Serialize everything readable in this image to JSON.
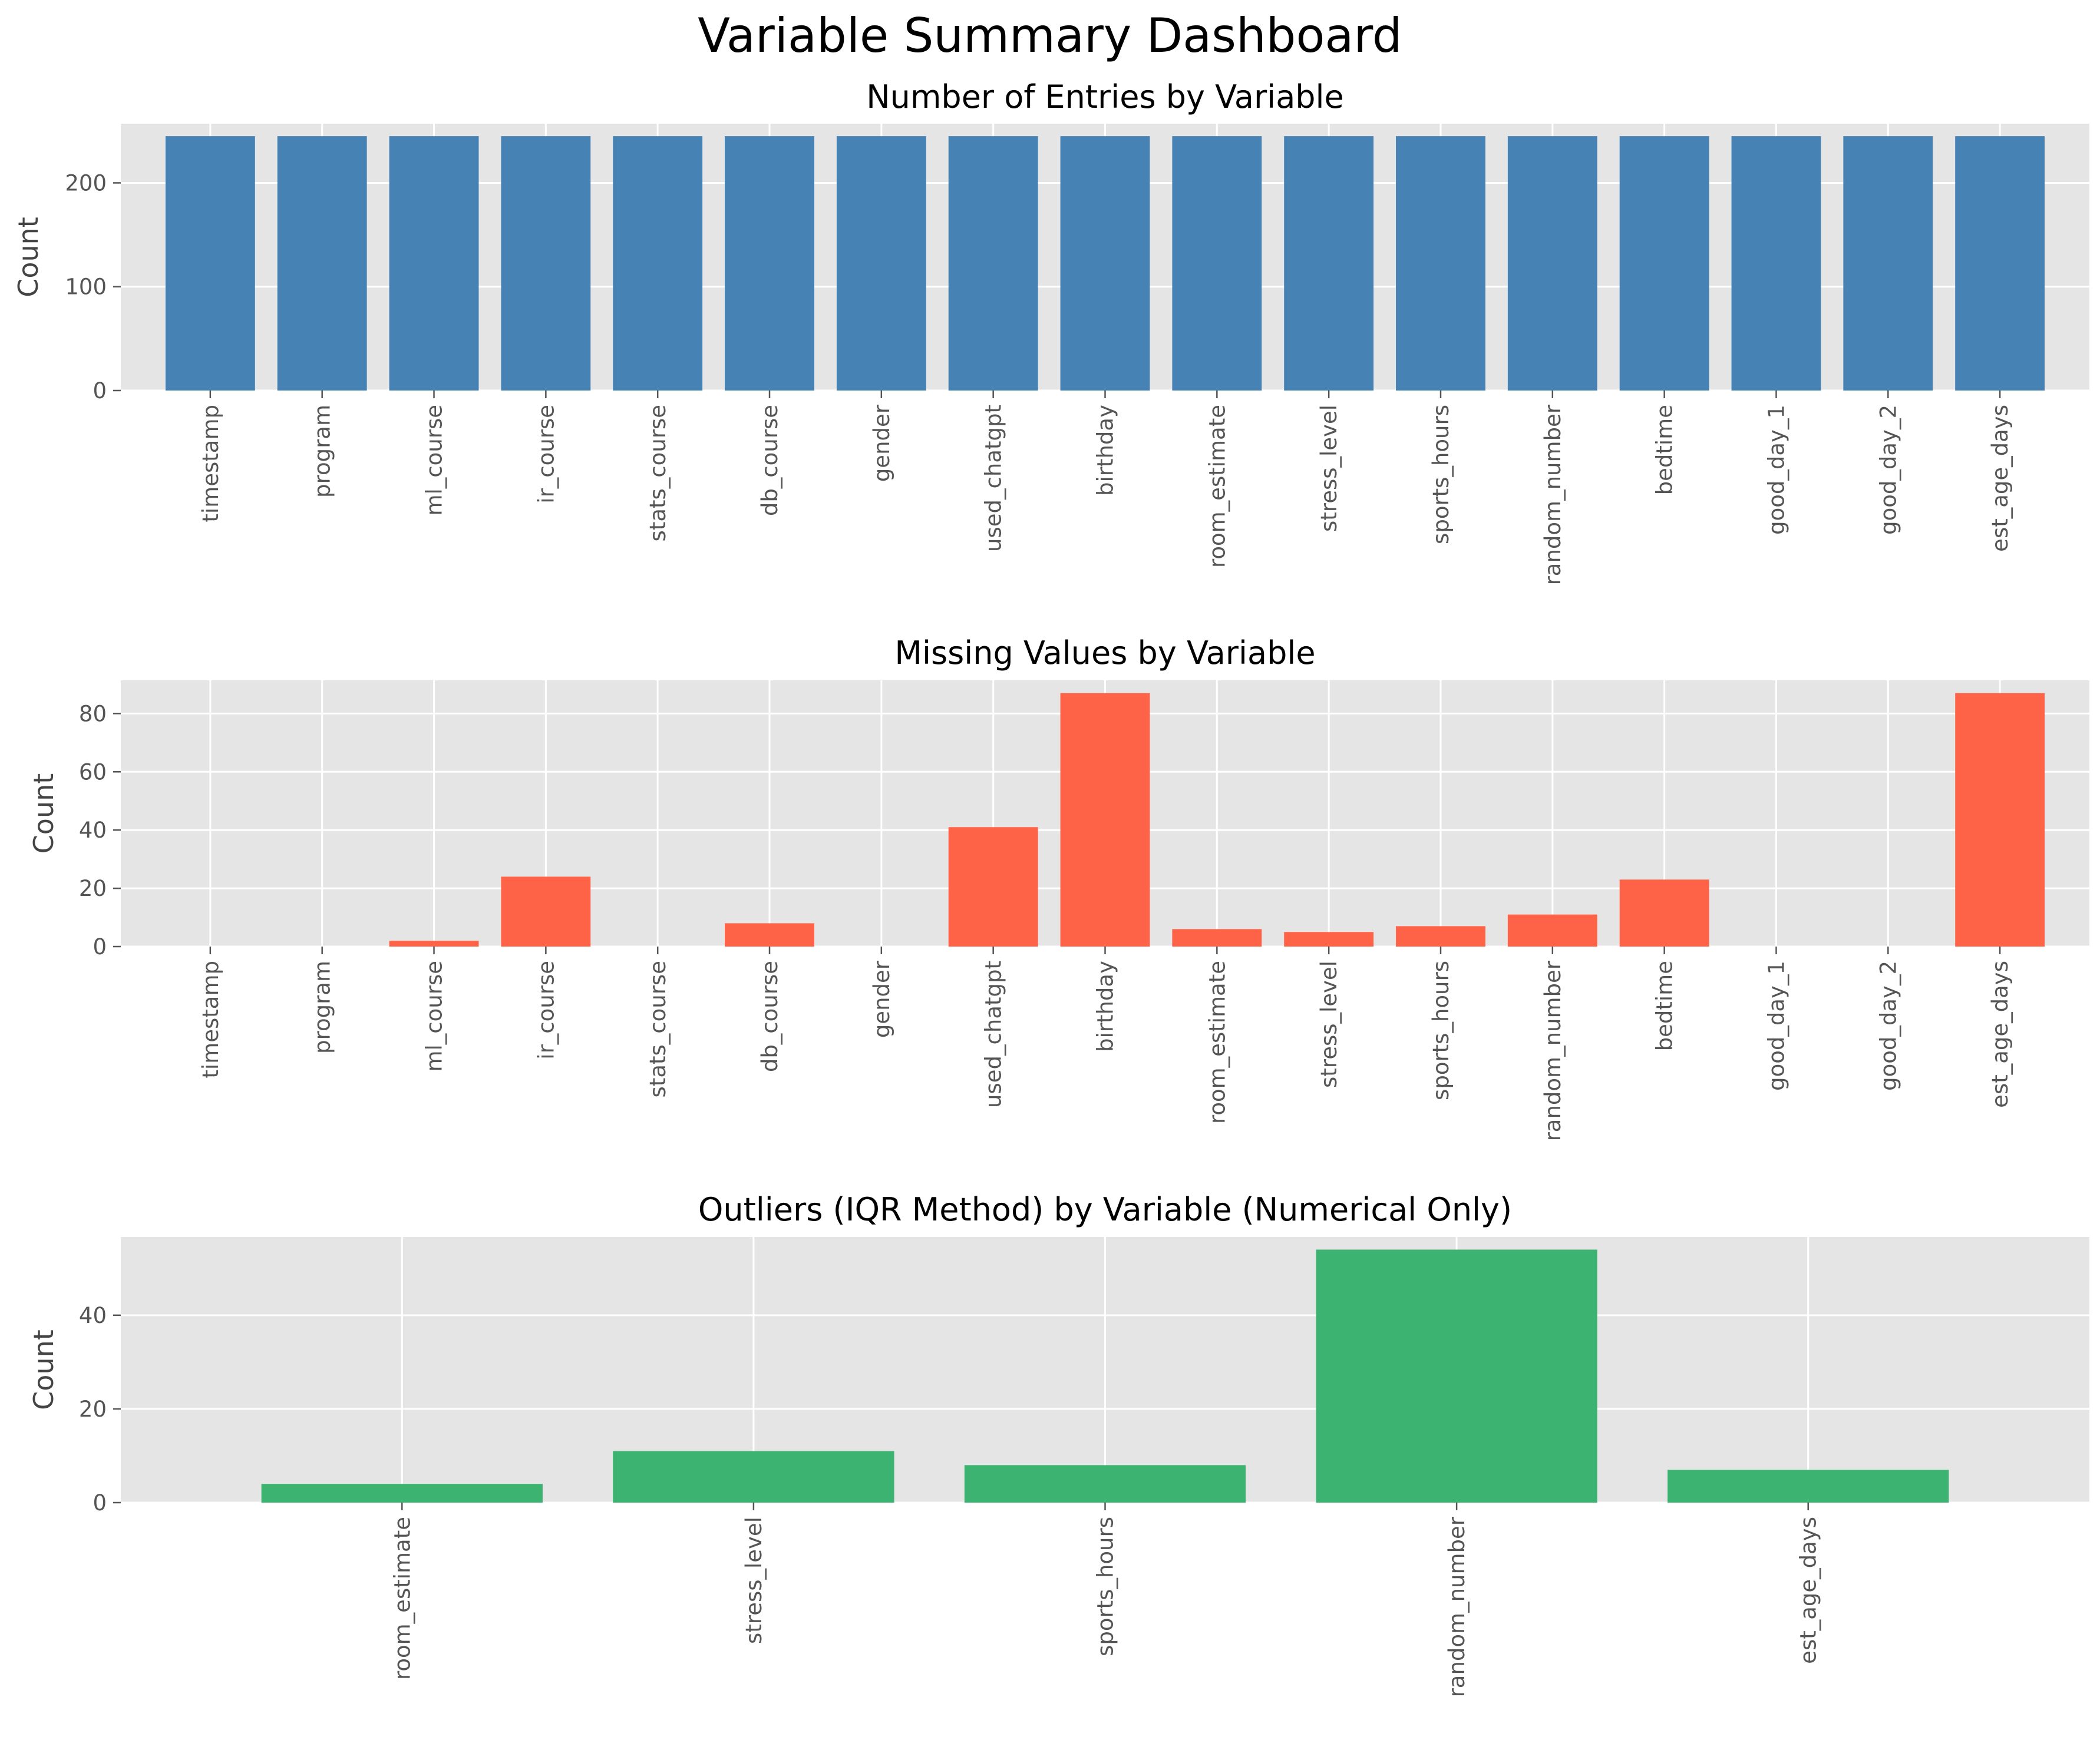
{
  "figure": {
    "suptitle": "Variable Summary Dashboard"
  },
  "colors": {
    "axes_background": "#E5E5E5",
    "grid": "#FFFFFF",
    "tick": "#555555",
    "entries_bar": "#4682B4",
    "missing_bar": "#FF6347",
    "outliers_bar": "#3CB371"
  },
  "chart_data": [
    {
      "type": "bar",
      "title": "Number of Entries by Variable",
      "xlabel": "",
      "ylabel": "Count",
      "ylim": [
        0,
        257
      ],
      "yticks": [
        0,
        100,
        200
      ],
      "grid": true,
      "categories": [
        "timestamp",
        "program",
        "ml_course",
        "ir_course",
        "stats_course",
        "db_course",
        "gender",
        "used_chatgpt",
        "birthday",
        "room_estimate",
        "stress_level",
        "sports_hours",
        "random_number",
        "bedtime",
        "good_day_1",
        "good_day_2",
        "est_age_days"
      ],
      "values": [
        245,
        245,
        245,
        245,
        245,
        245,
        245,
        245,
        245,
        245,
        245,
        245,
        245,
        245,
        245,
        245,
        245
      ],
      "color": "#4682B4"
    },
    {
      "type": "bar",
      "title": "Missing Values by Variable",
      "xlabel": "",
      "ylabel": "Count",
      "ylim": [
        0,
        91.4
      ],
      "yticks": [
        0,
        20,
        40,
        60,
        80
      ],
      "grid": true,
      "categories": [
        "timestamp",
        "program",
        "ml_course",
        "ir_course",
        "stats_course",
        "db_course",
        "gender",
        "used_chatgpt",
        "birthday",
        "room_estimate",
        "stress_level",
        "sports_hours",
        "random_number",
        "bedtime",
        "good_day_1",
        "good_day_2",
        "est_age_days"
      ],
      "values": [
        0,
        0,
        2,
        24,
        0,
        8,
        0,
        41,
        87,
        6,
        5,
        7,
        11,
        23,
        0,
        0,
        87
      ],
      "color": "#FF6347"
    },
    {
      "type": "bar",
      "title": "Outliers (IQR Method) by Variable (Numerical Only)",
      "xlabel": "",
      "ylabel": "Count",
      "ylim": [
        0,
        56.7
      ],
      "yticks": [
        0,
        20,
        40
      ],
      "grid": true,
      "categories": [
        "room_estimate",
        "stress_level",
        "sports_hours",
        "random_number",
        "est_age_days"
      ],
      "values": [
        4,
        11,
        8,
        54,
        7
      ],
      "color": "#3CB371"
    }
  ]
}
